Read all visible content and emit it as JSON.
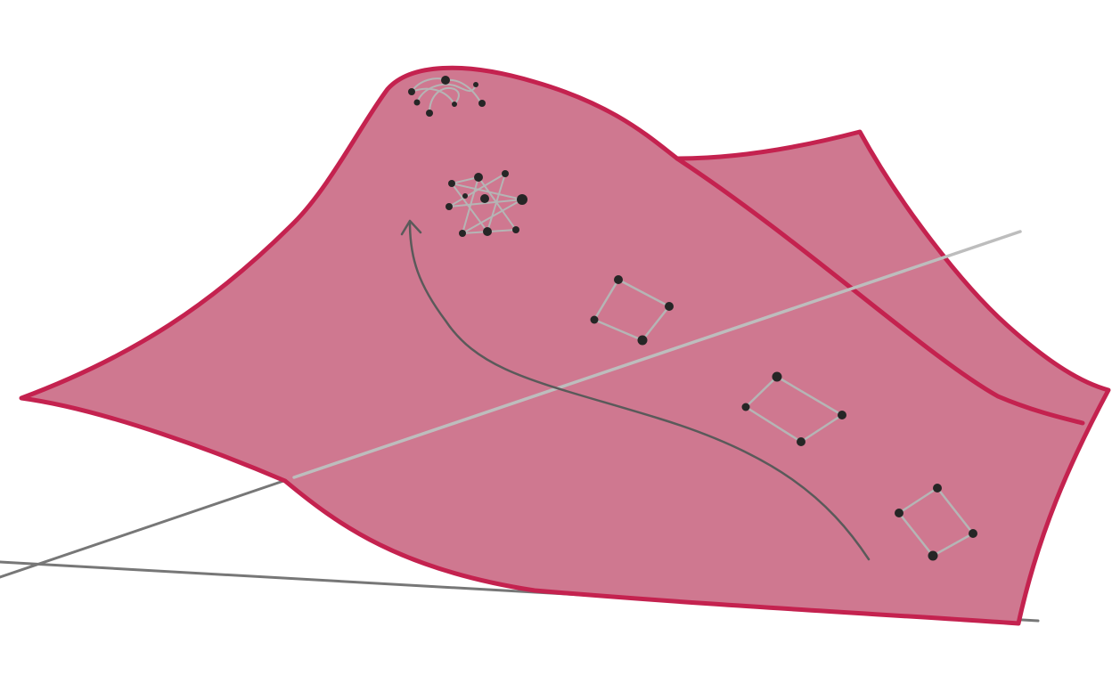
{
  "colors": {
    "background": "#ffffff",
    "surface_fill": "#cf7890",
    "surface_stroke": "#c4224f",
    "axis_line": "#777777",
    "axis_line_light": "#bdbdbd",
    "path_arrow": "#5a5a5a",
    "graph_edge": "#b5b5b5",
    "graph_node": "#262626"
  },
  "diagram": {
    "surface": {
      "kind": "curved-landscape-surface"
    },
    "axes": [
      {
        "name": "depth-axis",
        "style": "dark"
      },
      {
        "name": "horizontal-axis",
        "style": "dark"
      },
      {
        "name": "upper-axis-segment",
        "style": "light"
      }
    ],
    "trajectory": {
      "kind": "curved-arrow",
      "direction": "uphill"
    },
    "graphs": [
      {
        "name": "graph-peak",
        "kind": "arched-cluster",
        "node_count": 7
      },
      {
        "name": "graph-lattice",
        "kind": "dense-lattice",
        "node_count": 10
      },
      {
        "name": "graph-quad-1",
        "kind": "quadrilateral",
        "node_count": 4
      },
      {
        "name": "graph-quad-2",
        "kind": "quadrilateral",
        "node_count": 4
      },
      {
        "name": "graph-quad-3",
        "kind": "quadrilateral",
        "node_count": 4
      }
    ]
  }
}
